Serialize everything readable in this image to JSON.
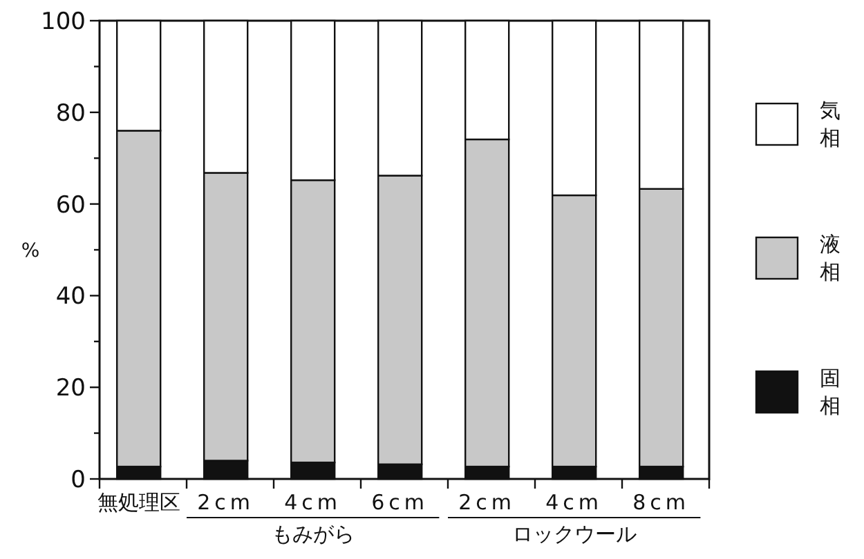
{
  "chart_data": {
    "type": "bar",
    "stacked": true,
    "ylabel": "%",
    "categories": [
      "無処理区",
      "2cm",
      "4cm",
      "6cm",
      "2cm",
      "4cm",
      "8cm"
    ],
    "series": [
      {
        "name": "固相",
        "color": "#111111",
        "values": [
          2.7,
          4.0,
          3.6,
          3.2,
          2.7,
          2.7,
          2.7
        ]
      },
      {
        "name": "液相",
        "color": "#c8c8c8",
        "values": [
          73.3,
          62.8,
          61.6,
          63.0,
          71.4,
          59.2,
          60.6
        ]
      },
      {
        "name": "気相",
        "color": "#ffffff",
        "values": [
          24.0,
          33.2,
          34.8,
          33.8,
          25.9,
          38.1,
          36.7
        ]
      }
    ],
    "ylim": [
      0,
      100
    ],
    "yticks": [
      0,
      {
        "value": 10,
        "label": null
      },
      20,
      {
        "value": 30,
        "label": null
      },
      40,
      {
        "value": 50,
        "label": null
      },
      60,
      {
        "value": 70,
        "label": null
      },
      80,
      {
        "value": 90,
        "label": null
      },
      100
    ],
    "annotations": [
      "もみがら",
      "ロックウール"
    ],
    "legend": "right"
  }
}
